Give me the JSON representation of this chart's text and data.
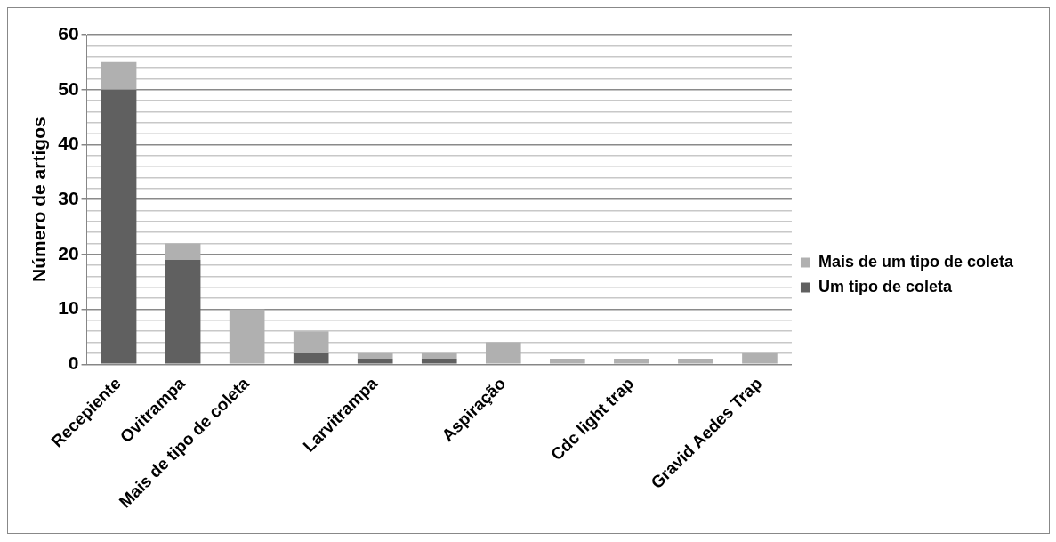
{
  "chart_data": {
    "type": "bar",
    "stacked": true,
    "ylabel": "Número de artigos",
    "categories": [
      "Recepiente",
      "Ovitrampa",
      "Mais de tipo de coleta",
      null,
      "Larvitrampa",
      null,
      "Aspiração",
      null,
      "Cdc light trap",
      null,
      "Gravid Aedes Trap"
    ],
    "series": [
      {
        "name": "Um tipo de coleta",
        "color": "#606060",
        "values": [
          50,
          19,
          0,
          2,
          1,
          1,
          0,
          0,
          0,
          0,
          0
        ]
      },
      {
        "name": "Mais de um tipo de coleta",
        "color": "#b0b0b0",
        "values": [
          5,
          3,
          10,
          4,
          1,
          1,
          4,
          1,
          1,
          1,
          2
        ]
      }
    ],
    "ylim": [
      0,
      60
    ],
    "yticks": [
      0,
      {
        "value": 2,
        "label": null
      },
      {
        "value": 4,
        "label": null
      },
      {
        "value": 6,
        "label": null
      },
      {
        "value": 8,
        "label": null
      },
      10,
      {
        "value": 12,
        "label": null
      },
      {
        "value": 14,
        "label": null
      },
      {
        "value": 16,
        "label": null
      },
      {
        "value": 18,
        "label": null
      },
      20,
      {
        "value": 22,
        "label": null
      },
      {
        "value": 24,
        "label": null
      },
      {
        "value": 26,
        "label": null
      },
      {
        "value": 28,
        "label": null
      },
      30,
      {
        "value": 32,
        "label": null
      },
      {
        "value": 34,
        "label": null
      },
      {
        "value": 36,
        "label": null
      },
      {
        "value": 38,
        "label": null
      },
      40,
      {
        "value": 42,
        "label": null
      },
      {
        "value": 44,
        "label": null
      },
      {
        "value": 46,
        "label": null
      },
      {
        "value": 48,
        "label": null
      },
      50,
      {
        "value": 52,
        "label": null
      },
      {
        "value": 54,
        "label": null
      },
      {
        "value": 56,
        "label": null
      },
      {
        "value": 58,
        "label": null
      },
      60
    ],
    "grid": "y",
    "legend": "right"
  }
}
